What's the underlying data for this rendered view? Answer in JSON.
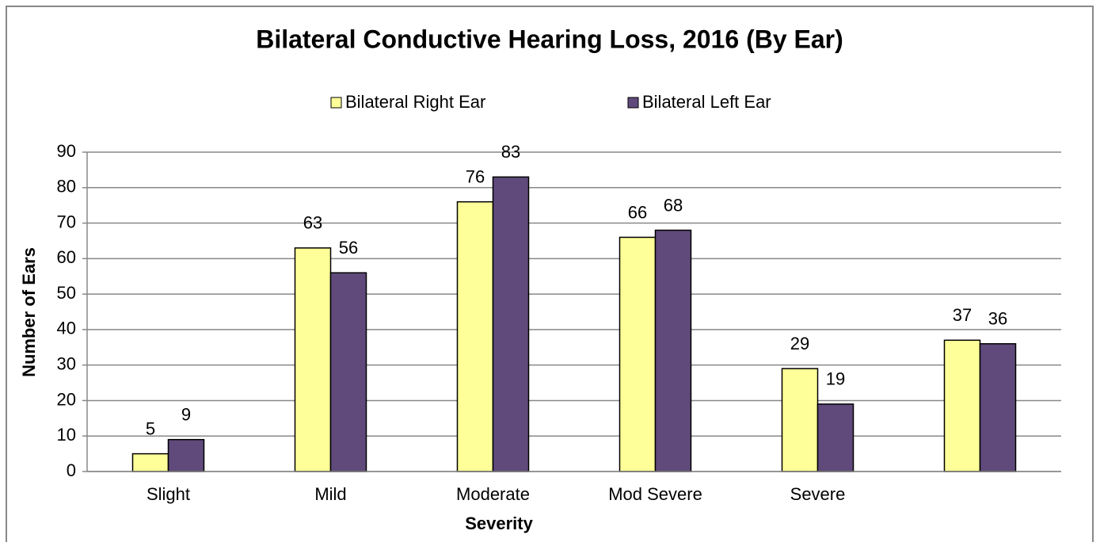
{
  "chart_data": {
    "type": "bar",
    "title": "Bilateral Conductive Hearing Loss, 2016 (By Ear)",
    "x_label": "Severity",
    "y_label": "Number of Ears",
    "categories": [
      "Slight",
      "Mild",
      "Moderate",
      "Mod Severe",
      "Severe",
      null
    ],
    "series": [
      {
        "name": "Bilateral Right Ear",
        "color": "#ffff99",
        "values": [
          5,
          63,
          76,
          66,
          29,
          37
        ]
      },
      {
        "name": "Bilateral Left Ear",
        "color": "#604a7b",
        "values": [
          9,
          56,
          83,
          68,
          19,
          36
        ]
      }
    ],
    "ylim": [
      0,
      90
    ],
    "yticks": [
      0,
      10,
      20,
      30,
      40,
      50,
      60,
      70,
      80,
      90
    ],
    "grid": true,
    "legend": "top"
  }
}
